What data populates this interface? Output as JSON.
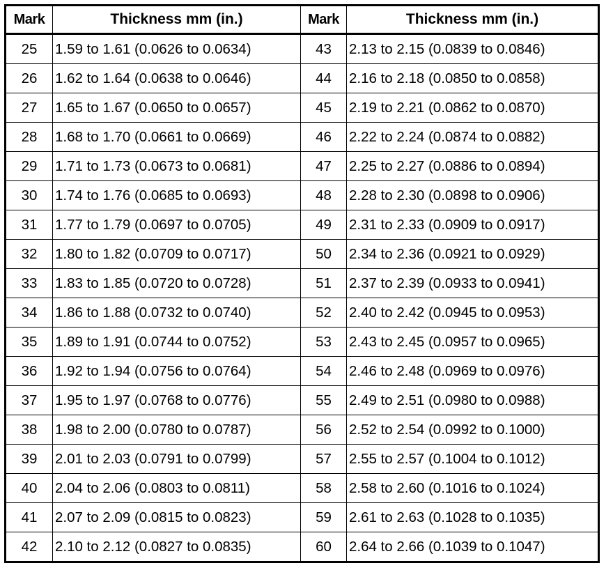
{
  "table": {
    "headers": [
      "Mark",
      "Thickness mm (in.)",
      "Mark",
      "Thickness mm (in.)"
    ],
    "rows": [
      [
        "25",
        "1.59 to 1.61 (0.0626 to 0.0634)",
        "43",
        "2.13 to 2.15 (0.0839 to 0.0846)"
      ],
      [
        "26",
        "1.62 to 1.64 (0.0638 to 0.0646)",
        "44",
        "2.16 to 2.18 (0.0850 to 0.0858)"
      ],
      [
        "27",
        "1.65 to 1.67 (0.0650 to 0.0657)",
        "45",
        "2.19 to 2.21 (0.0862 to 0.0870)"
      ],
      [
        "28",
        "1.68 to 1.70 (0.0661 to 0.0669)",
        "46",
        "2.22 to 2.24 (0.0874 to 0.0882)"
      ],
      [
        "29",
        "1.71 to 1.73 (0.0673 to 0.0681)",
        "47",
        "2.25 to 2.27 (0.0886 to 0.0894)"
      ],
      [
        "30",
        "1.74 to 1.76 (0.0685 to 0.0693)",
        "48",
        "2.28 to 2.30 (0.0898 to 0.0906)"
      ],
      [
        "31",
        "1.77 to 1.79 (0.0697 to 0.0705)",
        "49",
        "2.31 to 2.33 (0.0909 to 0.0917)"
      ],
      [
        "32",
        "1.80 to 1.82 (0.0709 to 0.0717)",
        "50",
        "2.34 to 2.36 (0.0921 to 0.0929)"
      ],
      [
        "33",
        "1.83 to 1.85 (0.0720 to 0.0728)",
        "51",
        "2.37 to 2.39 (0.0933 to 0.0941)"
      ],
      [
        "34",
        "1.86 to 1.88 (0.0732 to 0.0740)",
        "52",
        "2.40 to 2.42 (0.0945 to 0.0953)"
      ],
      [
        "35",
        "1.89 to 1.91 (0.0744 to 0.0752)",
        "53",
        "2.43 to 2.45 (0.0957 to 0.0965)"
      ],
      [
        "36",
        "1.92 to 1.94 (0.0756 to 0.0764)",
        "54",
        "2.46 to 2.48 (0.0969 to 0.0976)"
      ],
      [
        "37",
        "1.95 to 1.97 (0.0768 to 0.0776)",
        "55",
        "2.49 to 2.51 (0.0980 to 0.0988)"
      ],
      [
        "38",
        "1.98 to 2.00 (0.0780 to 0.0787)",
        "56",
        "2.52 to 2.54 (0.0992 to 0.1000)"
      ],
      [
        "39",
        "2.01 to 2.03 (0.0791 to 0.0799)",
        "57",
        "2.55 to 2.57 (0.1004 to 0.1012)"
      ],
      [
        "40",
        "2.04 to 2.06 (0.0803 to 0.0811)",
        "58",
        "2.58 to 2.60 (0.1016 to 0.1024)"
      ],
      [
        "41",
        "2.07 to 2.09 (0.0815 to 0.0823)",
        "59",
        "2.61 to 2.63 (0.1028 to 0.1035)"
      ],
      [
        "42",
        "2.10 to 2.12 (0.0827 to 0.0835)",
        "60",
        "2.64 to 2.66 (0.1039 to 0.1047)"
      ]
    ]
  }
}
